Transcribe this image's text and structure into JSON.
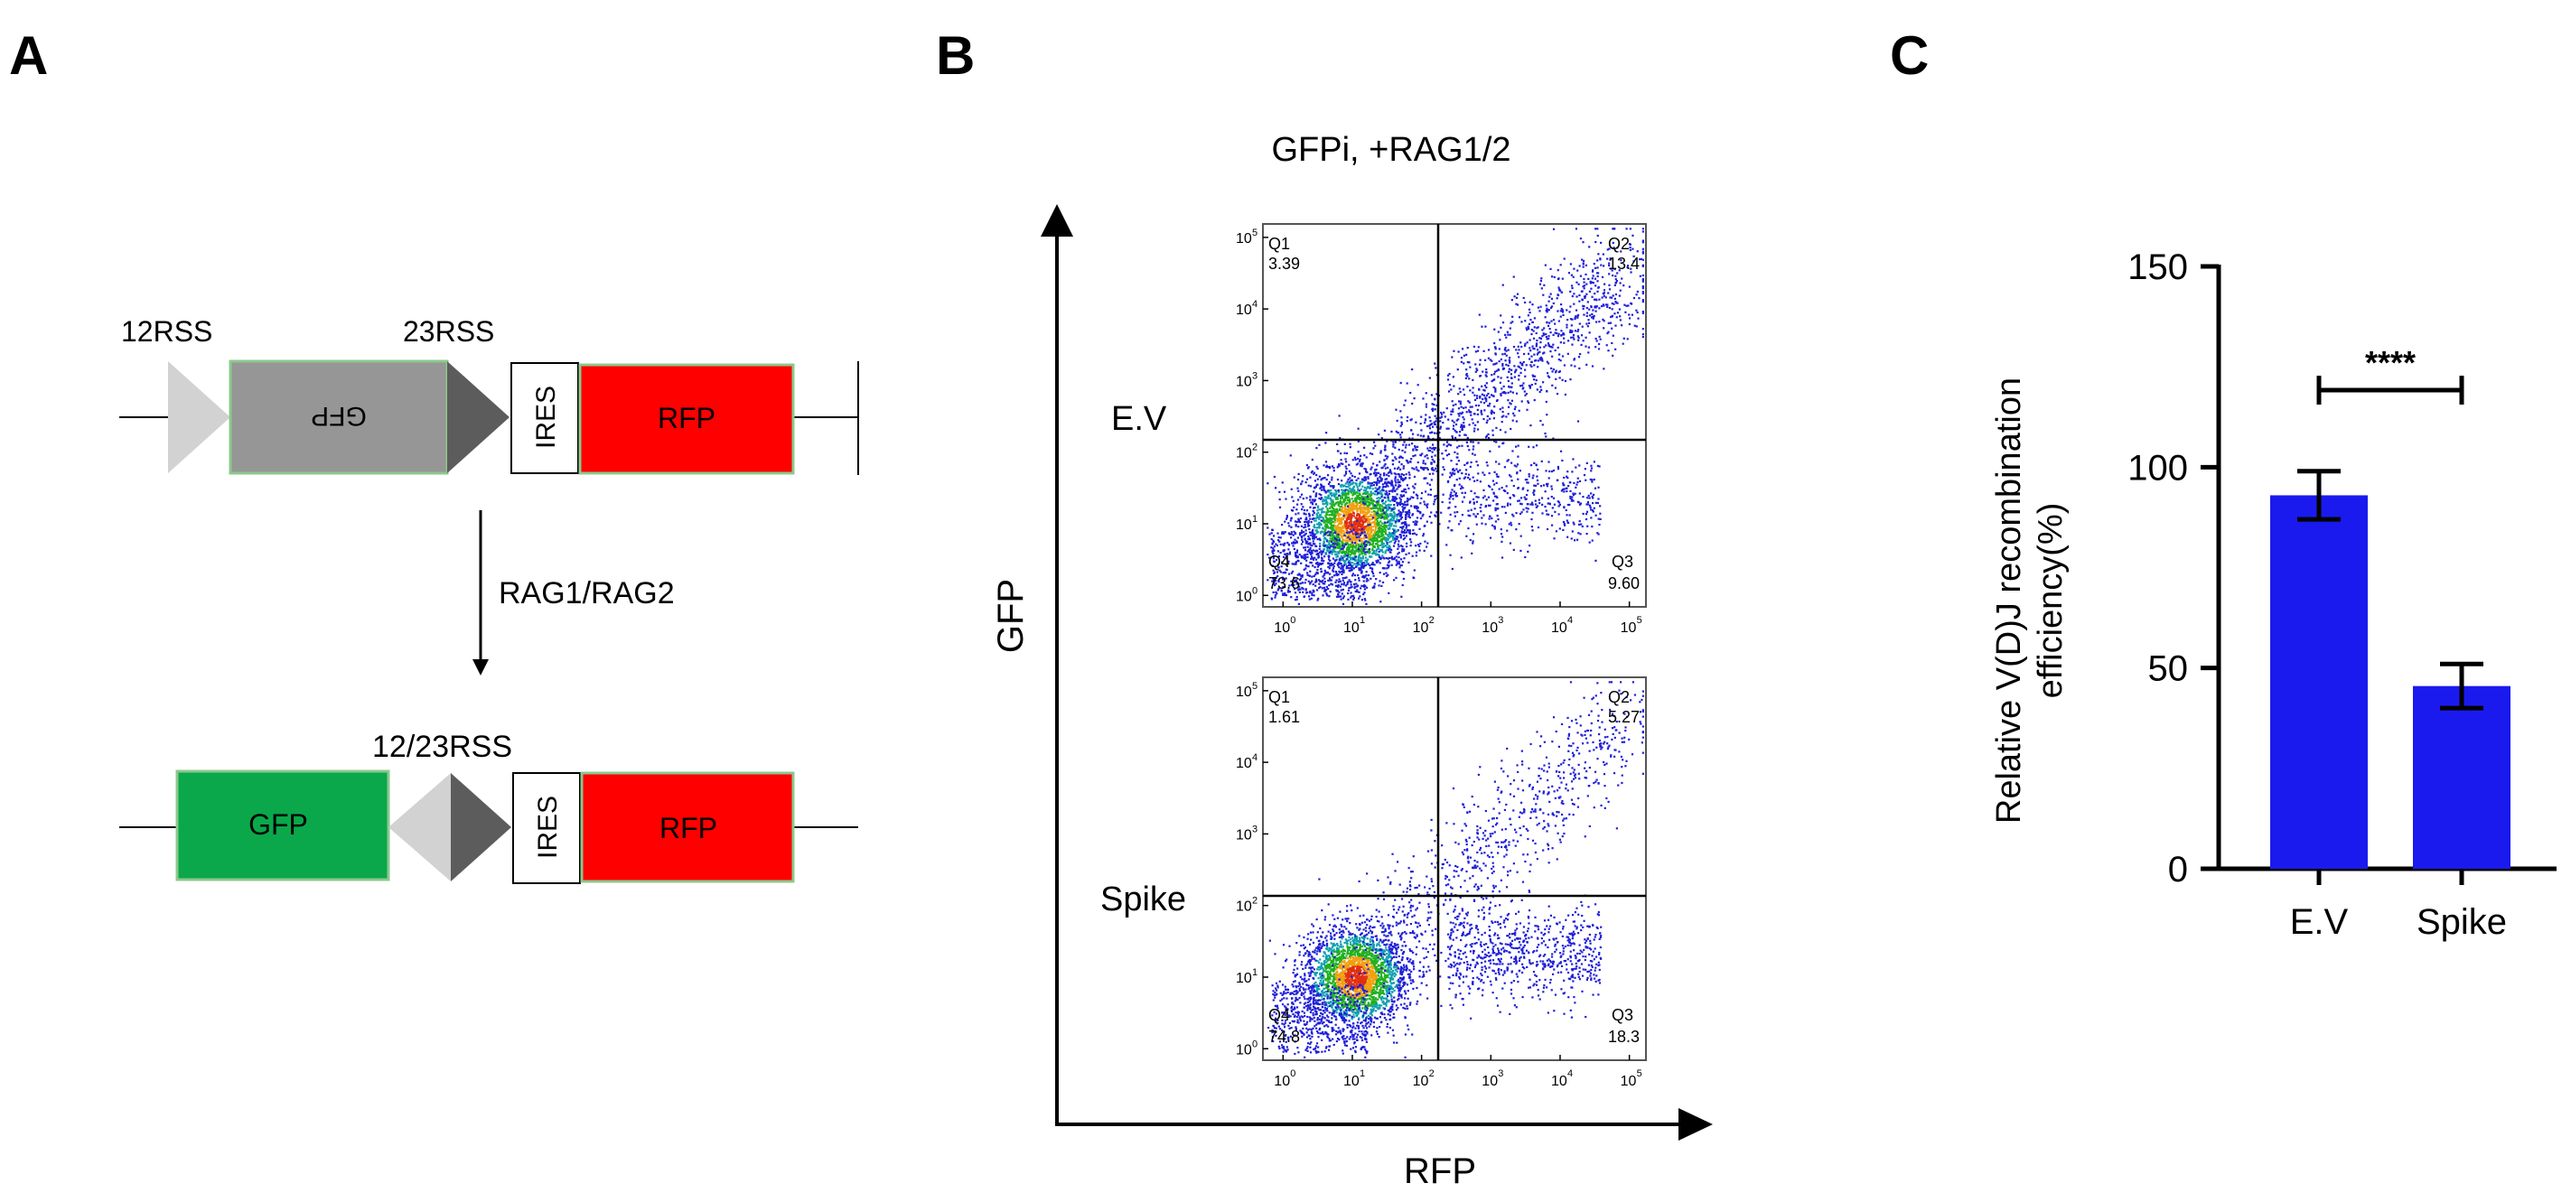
{
  "panels": {
    "a": {
      "letter": "A",
      "rss12": "12RSS",
      "rss23": "23RSS",
      "gfp_inverted": "GFP",
      "ires": "IRES",
      "rfp": "RFP",
      "arrow_label": "RAG1/RAG2",
      "rss_joined": "12/23RSS",
      "gfp": "GFP",
      "ires2": "IRES",
      "rfp2": "RFP"
    },
    "b": {
      "letter": "B",
      "title": "GFPi, +RAG1/2",
      "y_axis": "GFP",
      "x_axis": "RFP",
      "plots": [
        {
          "row_label": "E.V",
          "quadrants": {
            "q1": "Q1",
            "q1_val": "3.39",
            "q2": "Q2",
            "q2_val": "13.4",
            "q3": "Q3",
            "q3_val": "9.60",
            "q4": "Q4",
            "q4_val": "73.6"
          }
        },
        {
          "row_label": "Spike",
          "quadrants": {
            "q1": "Q1",
            "q1_val": "1.61",
            "q2": "Q2",
            "q2_val": "5.27",
            "q3": "Q3",
            "q3_val": "18.3",
            "q4": "Q4",
            "q4_val": "74.8"
          }
        }
      ],
      "tick_exponents": [
        "0",
        "1",
        "2",
        "3",
        "4",
        "5"
      ]
    },
    "c": {
      "letter": "C",
      "significance": "****"
    }
  },
  "chart_data": {
    "type": "bar",
    "categories": [
      "E.V",
      "Spike"
    ],
    "values": [
      93,
      45.5
    ],
    "error": [
      6,
      5.5
    ],
    "ylabel_line1": "Relative V(D)J recombination",
    "ylabel_line2": "efficiency(%)",
    "ylim": [
      0,
      150
    ],
    "yticks": [
      "0",
      "50",
      "100",
      "150"
    ],
    "bar_color": "#1a1aee"
  },
  "colors": {
    "gfp_gray": "#969696",
    "gfp_green": "#0aa84a",
    "rfp_red": "#fe0000",
    "triangle_light": "#d2d2d2",
    "triangle_dark": "#5c5c5c",
    "box_border_green": "#8cc88c",
    "dot_blue": "#1f1fd8"
  }
}
